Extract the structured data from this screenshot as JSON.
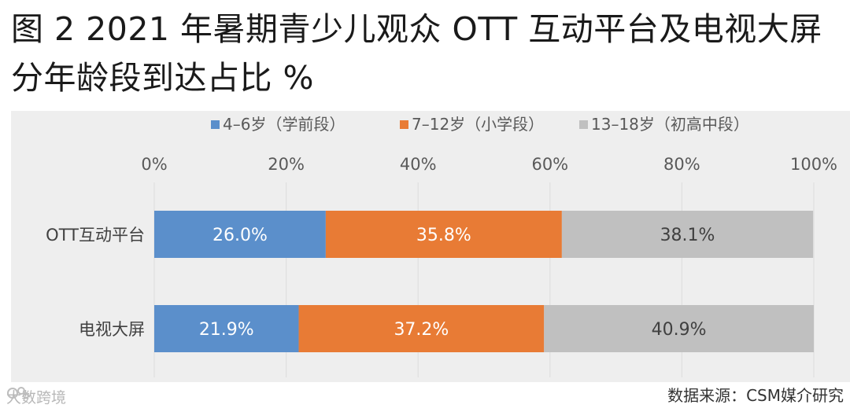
{
  "title": "图 2 2021 年暑期青少儿观众 OTT 互动平台及电视大屏分年龄段到达占比 %",
  "source": "数据来源：CSM媒介研究",
  "watermark": "大数跨境",
  "watermark_icon": "logo-icon",
  "chart_data": {
    "type": "bar",
    "orientation": "horizontal",
    "stacked": true,
    "categories": [
      "OTT互动平台",
      "电视大屏"
    ],
    "series": [
      {
        "name": "4–6岁（学前段）",
        "color": "#5b8fcb",
        "values": [
          26.0,
          21.9
        ],
        "labels": [
          "26.0%",
          "21.9%"
        ]
      },
      {
        "name": "7–12岁（小学段）",
        "color": "#e87b35",
        "values": [
          35.8,
          37.2
        ],
        "labels": [
          "35.8%",
          "37.2%"
        ]
      },
      {
        "name": "13–18岁（初高中段）",
        "color": "#c0c0c0",
        "values": [
          38.1,
          40.9
        ],
        "labels": [
          "38.1%",
          "40.9%"
        ]
      }
    ],
    "xlim": [
      0,
      100
    ],
    "xticks": [
      "0%",
      "20%",
      "40%",
      "60%",
      "80%",
      "100%"
    ],
    "legend_position": "top",
    "grid": true
  }
}
